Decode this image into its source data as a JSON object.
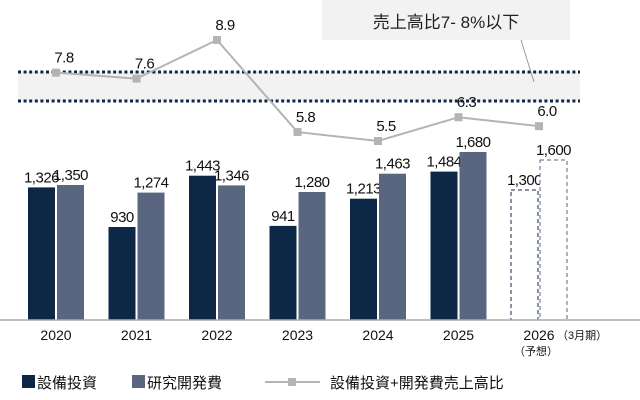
{
  "chart_data": {
    "type": "bar",
    "categories": [
      "2020",
      "2021",
      "2022",
      "2023",
      "2024",
      "2025",
      "2026"
    ],
    "category_suffix": "（3月期）",
    "forecast_note": "（予想）",
    "series": [
      {
        "name": "設備投資",
        "type": "bar",
        "color": "#0d2747",
        "values": [
          1326,
          930,
          1443,
          941,
          1213,
          1484,
          1300
        ],
        "labels": [
          "1,326",
          "930",
          "1,443",
          "941",
          "1,213",
          "1,484",
          "1,300"
        ]
      },
      {
        "name": "研究開発費",
        "type": "bar",
        "color": "#5a6680",
        "values": [
          1350,
          1274,
          1346,
          1280,
          1463,
          1680,
          1600
        ],
        "labels": [
          "1,350",
          "1,274",
          "1,346",
          "1,280",
          "1,463",
          "1,680",
          "1,600"
        ]
      },
      {
        "name": "設備投資+開発費売上高比",
        "type": "line",
        "color": "#b4b4b4",
        "values": [
          7.8,
          7.6,
          8.9,
          5.8,
          5.5,
          6.3,
          6.0
        ],
        "labels": [
          "7.8",
          "7.6",
          "8.9",
          "5.8",
          "5.5",
          "6.3",
          "6.0"
        ]
      }
    ],
    "forecast_index": 6,
    "target_band_label": "売上高比7- 8%以下",
    "band_color": "#f2f2f2",
    "band_border_color": "#0d2747",
    "legend_placement": "bottom",
    "grid": false
  }
}
